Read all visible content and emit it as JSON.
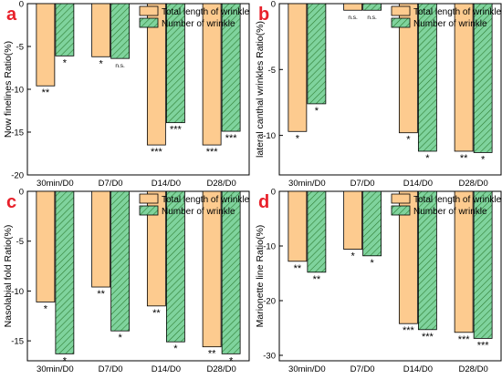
{
  "colors": {
    "total_length": "#FDCB8F",
    "number": "#7FD39D",
    "letter": "#E8212B"
  },
  "series_names": [
    "Total length of wrinkle",
    "Number of wrinkle"
  ],
  "chart_data": [
    {
      "letter": "a",
      "type": "bar",
      "ylabel": "Now finelines Ratio(%)",
      "ylim": [
        -20,
        0
      ],
      "yticks": [
        -20,
        -15,
        -10,
        -5,
        0
      ],
      "categories": [
        "30min/D0",
        "D7/D0",
        "D14/D0",
        "D28/D0"
      ],
      "series": [
        {
          "name": "Total length of wrinkle",
          "values": [
            -9.6,
            -6.2,
            -16.5,
            -16.5
          ],
          "sig": [
            "**",
            "*",
            "***",
            "***"
          ]
        },
        {
          "name": "Number of wrinkle",
          "values": [
            -6.1,
            -6.4,
            -13.9,
            -14.9
          ],
          "sig": [
            "*",
            "n.s.",
            "***",
            "***"
          ]
        }
      ]
    },
    {
      "letter": "b",
      "type": "bar",
      "ylabel": "lateral canthal wrinkles Ratio(%)",
      "ylim": [
        -13,
        0
      ],
      "yticks": [
        -10,
        -5,
        0
      ],
      "categories": [
        "30min/D0",
        "D7/D0",
        "D14/D0",
        "D28/D0"
      ],
      "series": [
        {
          "name": "Total length of wrinkle",
          "values": [
            -9.7,
            -0.5,
            -9.8,
            -11.2
          ],
          "sig": [
            "*",
            "n.s.",
            "*",
            "**"
          ]
        },
        {
          "name": "Number of wrinkle",
          "values": [
            -7.6,
            -0.5,
            -11.2,
            -11.3
          ],
          "sig": [
            "*",
            "n.s.",
            "*",
            "*"
          ]
        }
      ]
    },
    {
      "letter": "c",
      "type": "bar",
      "ylabel": "Nasolabial fold Ratio(%)",
      "ylim": [
        -17,
        0
      ],
      "yticks": [
        -15,
        -10,
        -5,
        0
      ],
      "categories": [
        "30min/D0",
        "D7/D0",
        "D14/D0",
        "D28/D0"
      ],
      "series": [
        {
          "name": "Total length of wrinkle",
          "values": [
            -11.1,
            -9.6,
            -11.5,
            -15.6
          ],
          "sig": [
            "*",
            "**",
            "**",
            "**"
          ]
        },
        {
          "name": "Number of wrinkle",
          "values": [
            -16.3,
            -14.0,
            -15.1,
            -16.3
          ],
          "sig": [
            "*",
            "*",
            "*",
            "*"
          ]
        }
      ]
    },
    {
      "letter": "d",
      "type": "bar",
      "ylabel": "Marionette line Ratio(%)",
      "ylim": [
        -31,
        0
      ],
      "yticks": [
        -30,
        -20,
        -10,
        0
      ],
      "categories": [
        "30min/D0",
        "D7/D0",
        "D14/D0",
        "D28/D0"
      ],
      "series": [
        {
          "name": "Total length of wrinkle",
          "values": [
            -12.8,
            -10.6,
            -24.2,
            -25.8
          ],
          "sig": [
            "**",
            "*",
            "***",
            "***"
          ]
        },
        {
          "name": "Number of wrinkle",
          "values": [
            -14.8,
            -11.8,
            -25.3,
            -26.9
          ],
          "sig": [
            "**",
            "*",
            "***",
            "***"
          ]
        }
      ]
    }
  ]
}
